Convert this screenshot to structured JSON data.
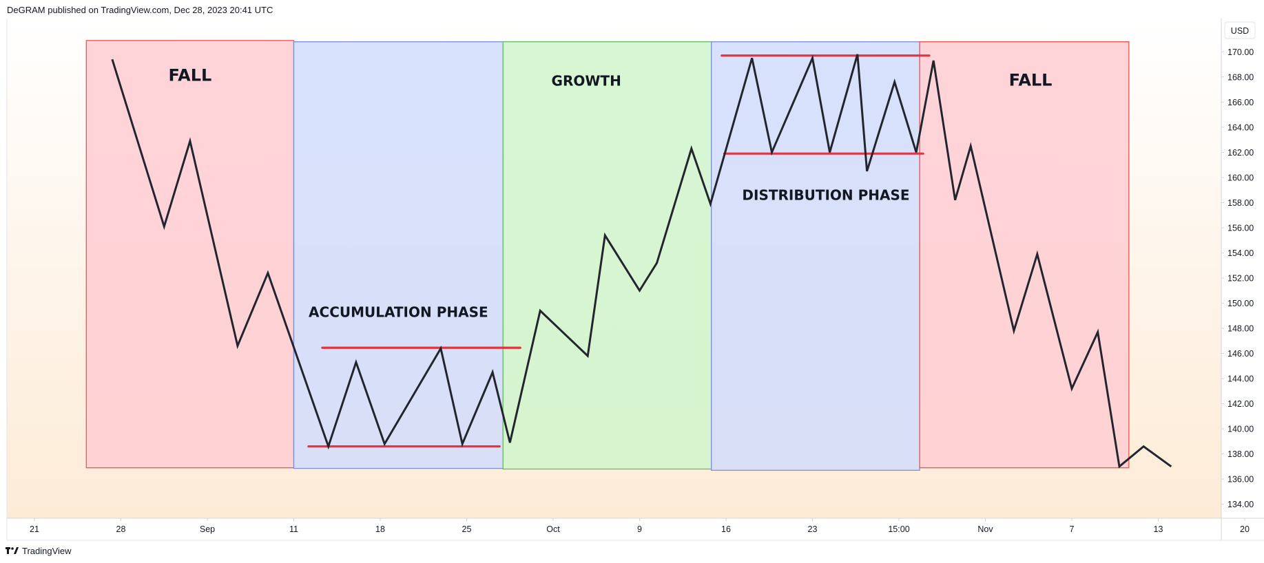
{
  "header": {
    "published": "DeGRAM published on TradingView.com, Dec 28, 2023 20:41 UTC"
  },
  "price_axis": {
    "currency": "USD",
    "ticks": [
      "170.00",
      "168.00",
      "166.00",
      "164.00",
      "162.00",
      "160.00",
      "158.00",
      "156.00",
      "154.00",
      "152.00",
      "150.00",
      "148.00",
      "146.00",
      "144.00",
      "142.00",
      "140.00",
      "138.00",
      "136.00",
      "134.00"
    ]
  },
  "time_axis": {
    "ticks": [
      "21",
      "28",
      "Sep",
      "11",
      "18",
      "25",
      "Oct",
      "9",
      "16",
      "23",
      "15:00",
      "Nov",
      "7",
      "13",
      "20"
    ]
  },
  "zones": [
    {
      "label": "FALL",
      "fill": "#ffcdd2",
      "stroke": "#ef5350"
    },
    {
      "label": "ACCUMULATION PHASE",
      "fill": "#d1dcfb",
      "stroke": "#7e8fd6"
    },
    {
      "label": "GROWTH",
      "fill": "#d0f5cc",
      "stroke": "#66bb6a"
    },
    {
      "label": "DISTRIBUTION PHASE",
      "fill": "#d1dcfb",
      "stroke": "#7e8fd6"
    },
    {
      "label": "FALL",
      "fill": "#ffcdd2",
      "stroke": "#ef5350"
    }
  ],
  "footer": {
    "brand": "TradingView"
  },
  "colors": {
    "line": "#22252e",
    "support_resistance": "#e53340",
    "axis": "#d1d4dc",
    "background_top": "#ffffff",
    "background_bottom": "#fdebd6"
  },
  "chart_data": {
    "type": "line",
    "title": "",
    "xlabel": "",
    "ylabel": "",
    "ylim": [
      133.3,
      171.7
    ],
    "x_ticks": [
      "21",
      "28",
      "Sep",
      "11",
      "18",
      "25",
      "Oct",
      "9",
      "16",
      "23",
      "15:00",
      "Nov",
      "7",
      "13",
      "20"
    ],
    "series": [
      {
        "name": "",
        "x": [
          0.9,
          1.5,
          1.8,
          2.35,
          2.7,
          3.4,
          3.72,
          4.05,
          4.7,
          4.95,
          5.3,
          5.5,
          5.85,
          6.4,
          6.6,
          7.0,
          7.2,
          7.6,
          7.82,
          8.3,
          8.53,
          9.0,
          9.2,
          9.52,
          9.63,
          9.95,
          10.2,
          10.4,
          10.65,
          10.83,
          11.33,
          11.6,
          12.0,
          12.3,
          12.55,
          12.83,
          13.15
        ],
        "values": [
          169.4,
          156.1,
          162.9,
          146.6,
          152.4,
          138.6,
          145.3,
          138.8,
          146.4,
          138.8,
          144.5,
          138.9,
          149.4,
          145.8,
          155.4,
          151.0,
          153.2,
          162.3,
          157.9,
          169.5,
          162.0,
          169.5,
          162.0,
          169.8,
          160.5,
          167.6,
          162.0,
          169.3,
          158.2,
          162.5,
          147.8,
          153.9,
          143.2,
          147.7,
          137.0,
          138.6,
          137.0
        ]
      }
    ],
    "zones": [
      {
        "label": "FALL",
        "x": [
          0.6,
          3.0
        ],
        "y": [
          136.9,
          170.9
        ]
      },
      {
        "label": "ACCUMULATION PHASE",
        "x": [
          3.0,
          5.42
        ],
        "y": [
          136.85,
          170.8
        ]
      },
      {
        "label": "GROWTH",
        "x": [
          5.42,
          7.83
        ],
        "y": [
          136.8,
          170.8
        ]
      },
      {
        "label": "DISTRIBUTION PHASE",
        "x": [
          7.83,
          10.24
        ],
        "y": [
          136.7,
          170.8
        ]
      },
      {
        "label": "FALL",
        "x": [
          10.24,
          12.66
        ],
        "y": [
          136.9,
          170.8
        ]
      }
    ],
    "levels": [
      {
        "label": "",
        "x": [
          3.33,
          5.62
        ],
        "y": 146.45
      },
      {
        "label": "",
        "x": [
          3.17,
          5.38
        ],
        "y": 138.6
      },
      {
        "label": "",
        "x": [
          7.95,
          10.35
        ],
        "y": 169.7
      },
      {
        "label": "",
        "x": [
          7.98,
          10.28
        ],
        "y": 161.9
      }
    ]
  }
}
